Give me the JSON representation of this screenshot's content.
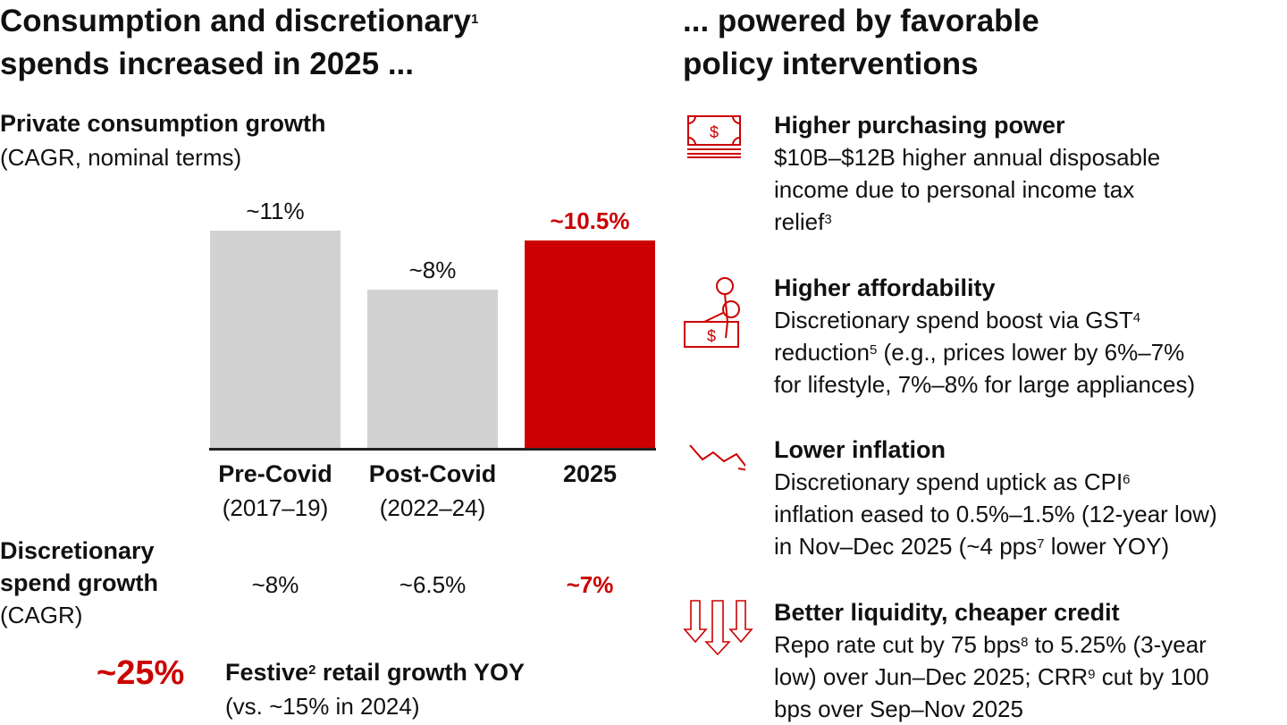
{
  "left": {
    "title_line1": "Consumption and discretionary",
    "title_sup": "1",
    "title_line2": "spends increased in 2025 ...",
    "chart_title": "Private consumption growth",
    "chart_subtitle": "(CAGR, nominal terms)",
    "discretionary_label_1": "Discretionary",
    "discretionary_label_2": "spend growth",
    "discretionary_label_3": "(CAGR)",
    "discretionary_values": [
      "~8%",
      "~6.5%",
      "~7%"
    ],
    "festive_value": "~25%",
    "festive_label": "Festive",
    "festive_sup": "2",
    "festive_label_rest": " retail growth YOY",
    "festive_sub": "(vs. ~15% in 2024)"
  },
  "chart_data": {
    "type": "bar",
    "categories": [
      "Pre-Covid",
      "Post-Covid",
      "2025"
    ],
    "category_sublabels": [
      "(2017–19)",
      "(2022–24)",
      ""
    ],
    "values": [
      11,
      8,
      10.5
    ],
    "data_labels": [
      "~11%",
      "~8%",
      "~10.5%"
    ],
    "colors": [
      "#d2d2d2",
      "#d2d2d2",
      "#cc0000"
    ],
    "title": "Private consumption growth",
    "subtitle": "(CAGR, nominal terms)",
    "ylim": [
      0,
      11.5
    ],
    "grid": false
  },
  "right": {
    "title_line1": "... powered by favorable",
    "title_line2": "policy interventions",
    "items": [
      {
        "icon": "money-stack-icon",
        "title": "Higher purchasing power",
        "lines": [
          "$10B–$12B higher annual disposable",
          "income due to personal income tax",
          "relief"
        ],
        "sup": "3"
      },
      {
        "icon": "scissors-cutting-money-icon",
        "title": "Higher affordability",
        "lines": [
          "Discretionary spend boost via GST",
          "reduction",
          " (e.g., prices lower by 6%–7%",
          "for lifestyle, 7%–8% for large appliances)"
        ],
        "sups": [
          "4",
          "5"
        ]
      },
      {
        "icon": "trend-down-icon",
        "title": "Lower inflation",
        "lines": [
          "Discretionary spend uptick as CPI",
          "inflation eased to 0.5%–1.5% (12-year low)",
          "in Nov–Dec 2025 (~4 pps",
          " lower YOY)"
        ],
        "sups": [
          "6",
          "7"
        ]
      },
      {
        "icon": "down-arrows-icon",
        "title": "Better liquidity, cheaper credit",
        "lines": [
          "Repo rate cut by 75 bps",
          " to 5.25% (3-year",
          "low) over Jun–Dec 2025; CRR",
          " cut by 100",
          "bps over Sep–Nov 2025"
        ],
        "sups": [
          "8",
          "9"
        ]
      }
    ]
  },
  "colors": {
    "accent": "#cc0000",
    "bar_gray": "#d2d2d2"
  }
}
